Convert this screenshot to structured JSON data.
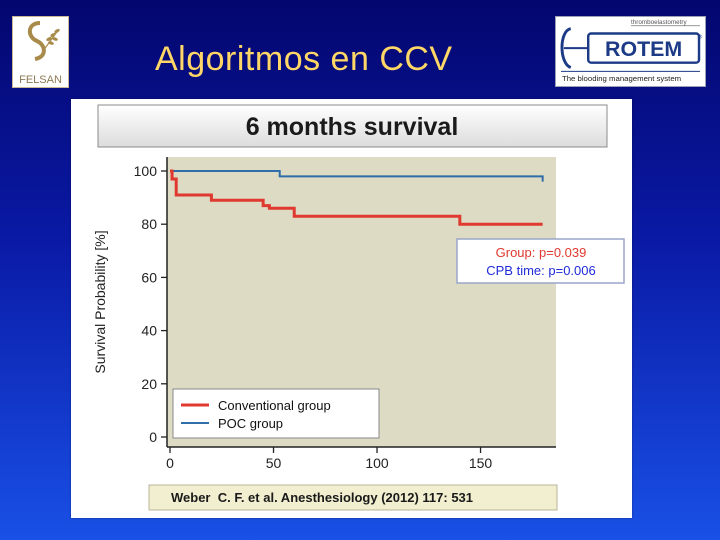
{
  "slide": {
    "title": "Algoritmos en CCV"
  },
  "logos": {
    "left": {
      "name": "felsan-logo",
      "text": "FELSAN"
    },
    "right": {
      "name": "rotem-logo",
      "brand": "ROTEM",
      "top_text": "thromboelastometry",
      "tagline": "The blooding management system",
      "registered": "®"
    }
  },
  "figure": {
    "header": "6 months survival",
    "citation": "Weber  C. F. et al. Anesthesiology (2012) 117: 531",
    "stats_box": {
      "line1": "Group: p=0.039",
      "line2": "CPB time: p=0.006",
      "line1_color": "#e0392f",
      "line2_color": "#1f2bd8"
    }
  },
  "chart_data": {
    "type": "line",
    "title": "",
    "xlabel": "",
    "ylabel": "Survival Probability [%]",
    "xlim": [
      0,
      185
    ],
    "ylim": [
      0,
      100
    ],
    "x_ticks": [
      0,
      50,
      100,
      150
    ],
    "y_ticks": [
      0,
      20,
      40,
      60,
      80,
      100
    ],
    "legend_position": "bottom-left",
    "grid": false,
    "plot_background": "#dddbc4",
    "series": [
      {
        "name": "Conventional group",
        "color": "#e0392f",
        "step": true,
        "x": [
          0,
          1,
          3,
          20,
          43,
          45,
          48,
          60,
          140,
          180
        ],
        "y": [
          100,
          97,
          91,
          89,
          89,
          87,
          86,
          83,
          80,
          80
        ]
      },
      {
        "name": "POC group",
        "color": "#2f6ea8",
        "step": true,
        "x": [
          0,
          42,
          53,
          180
        ],
        "y": [
          100,
          100,
          98,
          96
        ]
      }
    ]
  }
}
